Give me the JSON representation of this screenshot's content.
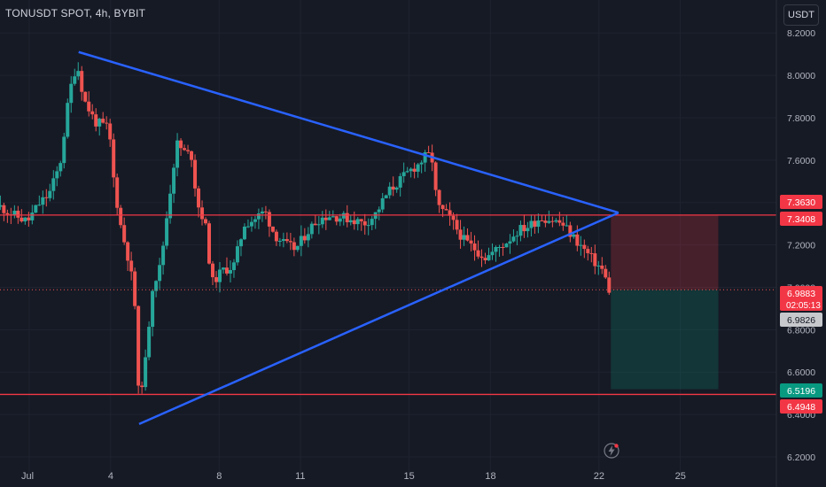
{
  "header": {
    "title": "TONUSDT SPOT, 4h, BYBIT",
    "currency": "USDT"
  },
  "colors": {
    "background": "#161a25",
    "up": "#26a69a",
    "down": "#ef5350",
    "trendline": "#2962ff",
    "hline": "#f23645",
    "grid": "#1f2330"
  },
  "chart_data": {
    "type": "candlestick",
    "title": "TONUSDT SPOT, 4h, BYBIT",
    "ylim": [
      6.15,
      8.25
    ],
    "y_ticks": [
      "8.2000",
      "8.0000",
      "7.8000",
      "7.6000",
      "7.4000",
      "7.2000",
      "7.0000",
      "6.8000",
      "6.6000",
      "6.4000",
      "6.2000"
    ],
    "x_ticks": [
      "Jul",
      "4",
      "8",
      "11",
      "15",
      "18",
      "22",
      "25"
    ],
    "grid": true,
    "candle_count": 173,
    "price_markers": [
      {
        "value": "7.3630",
        "color": "#f23645",
        "text_color": "#ffffff",
        "note": ""
      },
      {
        "value": "7.3408",
        "color": "#f23645",
        "text_color": "#ffffff",
        "note": ""
      },
      {
        "value": "6.9883",
        "color": "#f23645",
        "text_color": "#ffffff",
        "note": "02:05:13"
      },
      {
        "value": "6.9826",
        "color": "#c7c8cc",
        "text_color": "#131722",
        "note": ""
      },
      {
        "value": "6.5196",
        "color": "#089981",
        "text_color": "#ffffff",
        "note": ""
      },
      {
        "value": "6.4948",
        "color": "#f23645",
        "text_color": "#ffffff",
        "note": ""
      }
    ],
    "current_price": 6.9883,
    "horizontal_lines": [
      7.3408,
      6.4948
    ],
    "triangle": {
      "apex": {
        "x": 22.72,
        "y": 7.352
      },
      "upper_start": {
        "x": 2.82,
        "y": 8.11
      },
      "lower_start": {
        "x": 5.05,
        "y": 6.355
      }
    },
    "position": {
      "entry": 6.9883,
      "stop": 7.3408,
      "target": 6.5196,
      "x_start": 22.44,
      "x_end": 26.4
    }
  }
}
